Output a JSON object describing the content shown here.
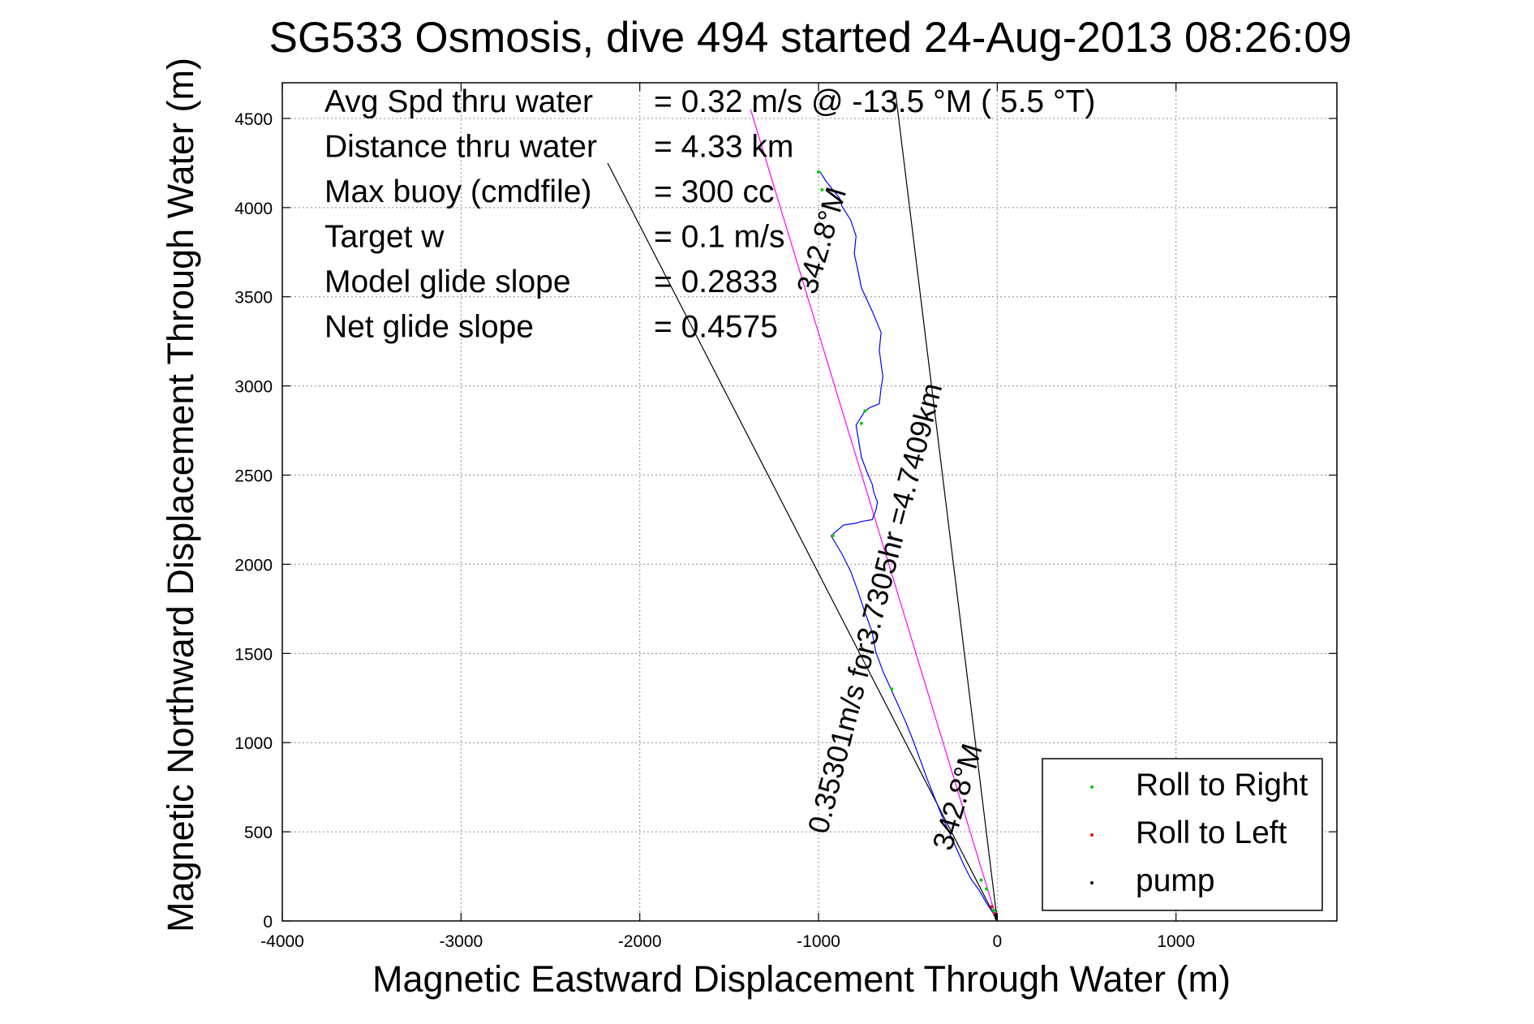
{
  "chart_data": {
    "type": "line",
    "title": "SG533 Osmosis, dive 494 started 24-Aug-2013 08:26:09",
    "xlabel": "Magnetic Eastward Displacement Through Water (m)",
    "ylabel": "Magnetic Northward Displacement Through Water (m)",
    "xlim": [
      -4000,
      1900
    ],
    "ylim": [
      0,
      4700
    ],
    "xticks": [
      -4000,
      -3000,
      -2000,
      -1000,
      0,
      1000
    ],
    "xtick_labels": [
      "-4000",
      "-3000",
      "-2000",
      "-1000",
      "0",
      "1000"
    ],
    "yticks": [
      0,
      500,
      1000,
      1500,
      2000,
      2500,
      3000,
      3500,
      4000,
      4500
    ],
    "ytick_labels": [
      "0",
      "500",
      "1000",
      "1500",
      "2000",
      "2500",
      "3000",
      "3500",
      "4000",
      "4500"
    ],
    "grid": true,
    "stats": [
      {
        "label": "Avg Spd thru water",
        "value": "=  0.32 m/s @ -13.5 °M (  5.5 °T)"
      },
      {
        "label": "Distance thru water",
        "value": "=  4.33 km"
      },
      {
        "label": "Max buoy (cmdfile)",
        "value": "= 300 cc"
      },
      {
        "label": "Target w",
        "value": "= 0.1 m/s"
      },
      {
        "label": "Model glide slope",
        "value": "= 0.2833"
      },
      {
        "label": "Net glide slope",
        "value": "= 0.4575"
      }
    ],
    "series": [
      {
        "name": "track",
        "color": "#0000ff",
        "x": [
          0,
          -20,
          -60,
          -100,
          -150,
          -190,
          -230,
          -270,
          -310,
          -350,
          -390,
          -430,
          -470,
          -510,
          -550,
          -590,
          -640,
          -680,
          -700,
          -740,
          -780,
          -820,
          -870,
          -900,
          -930,
          -860,
          -790,
          -760,
          -700,
          -680,
          -670,
          -690,
          -700,
          -730,
          -760,
          -790,
          -740,
          -710,
          -660,
          -650,
          -640,
          -660,
          -650,
          -700,
          -760,
          -780,
          -800,
          -790,
          -820,
          -870,
          -880,
          -920,
          -960,
          -990
        ],
        "y": [
          0,
          40,
          100,
          170,
          240,
          320,
          410,
          500,
          590,
          690,
          790,
          900,
          1010,
          1110,
          1200,
          1290,
          1400,
          1510,
          1620,
          1730,
          1850,
          1960,
          2060,
          2110,
          2160,
          2220,
          2230,
          2240,
          2250,
          2300,
          2350,
          2400,
          2450,
          2520,
          2600,
          2780,
          2860,
          2880,
          2900,
          2990,
          3050,
          3200,
          3300,
          3420,
          3550,
          3650,
          3740,
          3840,
          3930,
          4010,
          4050,
          4100,
          4150,
          4200
        ]
      }
    ],
    "lines": [
      {
        "color": "#ff00ff",
        "x": [
          0,
          -1380
        ],
        "y": [
          0,
          4550
        ]
      },
      {
        "color": "#000000",
        "x": [
          0,
          -2180
        ],
        "y": [
          0,
          4250
        ]
      },
      {
        "color": "#000000",
        "x": [
          0,
          -570
        ],
        "y": [
          0,
          4650
        ]
      }
    ],
    "markers": [
      {
        "color": "#00cc00",
        "x": [
          -1000,
          -980,
          -760,
          -740,
          -920,
          -590,
          -90,
          -60,
          -20
        ],
        "y": [
          4200,
          4100,
          2790,
          2860,
          2160,
          1300,
          230,
          180,
          60
        ]
      },
      {
        "color": "#ff0000",
        "x": [
          -30,
          -15
        ],
        "y": [
          80,
          40
        ]
      },
      {
        "color": "#000000",
        "x": [
          -10,
          -5
        ],
        "y": [
          30,
          15
        ]
      }
    ],
    "annotations": [
      {
        "text": "342.8°M",
        "x": -930,
        "y": 3800,
        "angle": -73.5
      },
      {
        "text": "0.35301m/s for3.7305hr =4.7409km",
        "x": -630,
        "y": 1740,
        "angle": -75.6
      },
      {
        "text": "342.8°M",
        "x": -170,
        "y": 680,
        "angle": -73.5
      }
    ],
    "legend": {
      "placement": "bottom-right",
      "entries": [
        {
          "label": "Roll to Right",
          "color": "#00cc00"
        },
        {
          "label": "Roll to Left",
          "color": "#ff0000"
        },
        {
          "label": "pump",
          "color": "#000000"
        }
      ]
    }
  }
}
